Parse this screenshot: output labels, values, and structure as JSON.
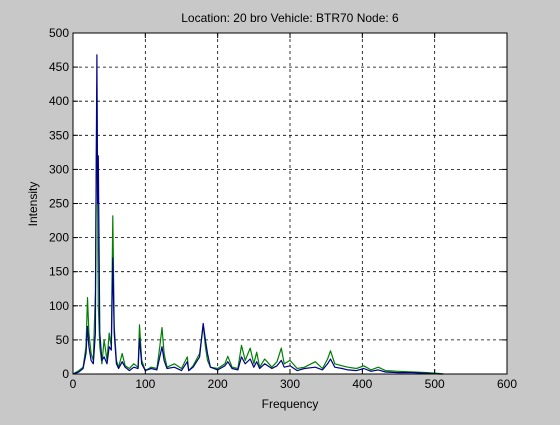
{
  "chart_data": {
    "type": "line",
    "title": "Location: 20 bro Vehicle: BTR70 Node: 6",
    "xlabel": "Frequency",
    "ylabel": "Intensity",
    "xlim": [
      0,
      600
    ],
    "ylim": [
      0,
      500
    ],
    "xticks": [
      0,
      100,
      200,
      300,
      400,
      500,
      600
    ],
    "yticks": [
      0,
      50,
      100,
      150,
      200,
      250,
      300,
      350,
      400,
      450,
      500
    ],
    "grid": true,
    "series": [
      {
        "color": "#008000",
        "x": [
          0,
          8,
          14,
          18,
          20,
          22,
          25,
          28,
          31,
          33,
          35,
          37,
          40,
          43,
          47,
          50,
          53,
          55,
          57,
          60,
          63,
          68,
          72,
          78,
          84,
          90,
          92,
          95,
          100,
          108,
          116,
          120,
          123,
          126,
          130,
          140,
          150,
          158,
          160,
          166,
          175,
          180,
          183,
          186,
          190,
          200,
          210,
          214,
          220,
          228,
          233,
          238,
          245,
          250,
          254,
          258,
          265,
          275,
          282,
          288,
          292,
          300,
          310,
          320,
          335,
          345,
          352,
          356,
          362,
          372,
          380,
          392,
          402,
          412,
          422,
          432,
          450,
          470,
          490,
          505,
          512
        ],
        "y": [
          0,
          5,
          10,
          40,
          112,
          60,
          30,
          20,
          120,
          420,
          100,
          40,
          15,
          50,
          20,
          60,
          40,
          232,
          70,
          20,
          10,
          30,
          12,
          8,
          15,
          10,
          72,
          20,
          5,
          10,
          8,
          40,
          68,
          30,
          10,
          15,
          8,
          25,
          5,
          12,
          30,
          72,
          40,
          20,
          10,
          8,
          15,
          26,
          10,
          8,
          42,
          20,
          38,
          15,
          32,
          10,
          22,
          10,
          18,
          38,
          15,
          20,
          8,
          10,
          18,
          8,
          22,
          34,
          15,
          12,
          10,
          8,
          12,
          6,
          10,
          5,
          4,
          3,
          2,
          1,
          0
        ]
      },
      {
        "color": "#00008b",
        "x": [
          0,
          8,
          14,
          18,
          20,
          22,
          25,
          28,
          31,
          32,
          33,
          34,
          35,
          37,
          40,
          43,
          47,
          50,
          53,
          55,
          57,
          60,
          63,
          68,
          72,
          78,
          84,
          90,
          92,
          95,
          100,
          108,
          116,
          120,
          123,
          126,
          130,
          140,
          150,
          158,
          160,
          166,
          175,
          178,
          180,
          183,
          186,
          190,
          200,
          210,
          214,
          220,
          228,
          233,
          238,
          245,
          250,
          254,
          258,
          265,
          275,
          282,
          288,
          292,
          300,
          310,
          320,
          335,
          345,
          352,
          356,
          362,
          372,
          380,
          392,
          402,
          412,
          422,
          432,
          450,
          470,
          490,
          505,
          512
        ],
        "y": [
          0,
          3,
          8,
          30,
          70,
          40,
          20,
          15,
          60,
          280,
          468,
          250,
          320,
          60,
          20,
          25,
          15,
          40,
          35,
          170,
          60,
          15,
          8,
          18,
          10,
          5,
          10,
          8,
          52,
          15,
          5,
          8,
          6,
          25,
          40,
          20,
          8,
          10,
          5,
          18,
          5,
          10,
          25,
          55,
          74,
          50,
          30,
          10,
          6,
          12,
          18,
          8,
          6,
          25,
          15,
          22,
          10,
          18,
          8,
          15,
          8,
          12,
          20,
          10,
          12,
          5,
          8,
          10,
          6,
          15,
          22,
          10,
          8,
          6,
          5,
          8,
          4,
          6,
          3,
          2,
          2,
          1,
          0,
          0
        ]
      }
    ]
  }
}
